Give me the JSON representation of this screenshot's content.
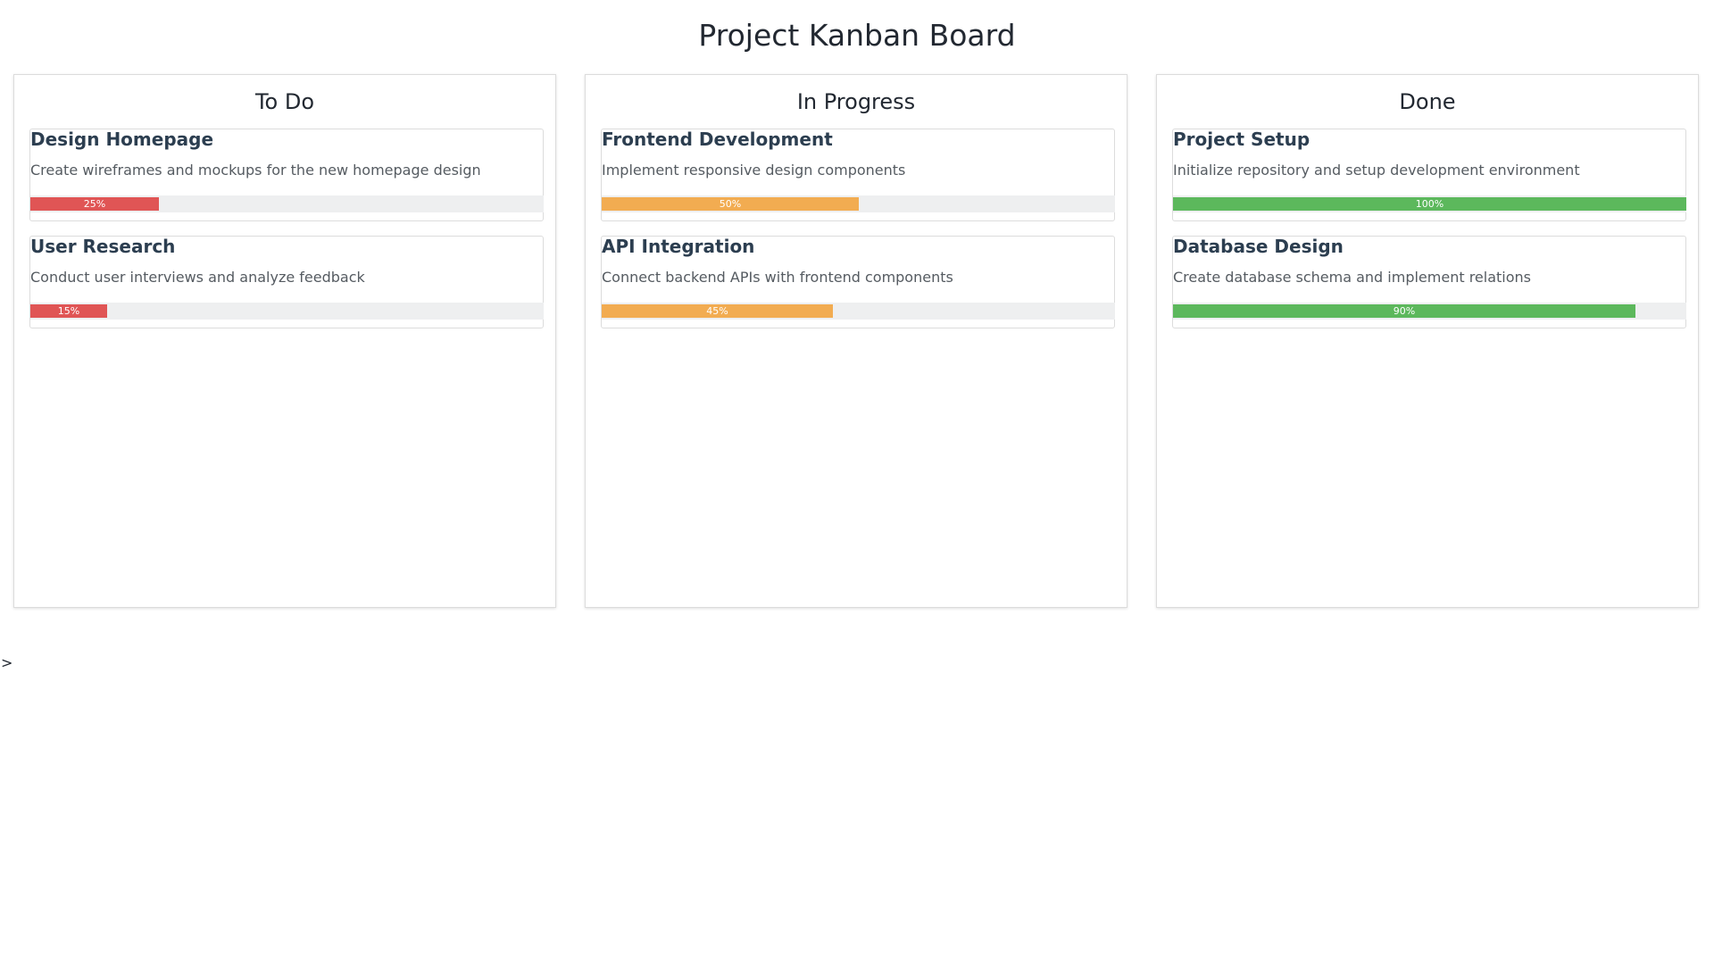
{
  "board": {
    "title": "Project Kanban Board"
  },
  "columns": [
    {
      "title": "To Do",
      "color": "#e05555",
      "cards": [
        {
          "title": "Design Homepage",
          "description": "Create wireframes and mockups for the new homepage design",
          "progress": 25,
          "progress_label": "25%"
        },
        {
          "title": "User Research",
          "description": "Conduct user interviews and analyze feedback",
          "progress": 15,
          "progress_label": "15%"
        }
      ]
    },
    {
      "title": "In Progress",
      "color": "#f2ac51",
      "cards": [
        {
          "title": "Frontend Development",
          "description": "Implement responsive design components",
          "progress": 50,
          "progress_label": "50%"
        },
        {
          "title": "API Integration",
          "description": "Connect backend APIs with frontend components",
          "progress": 45,
          "progress_label": "45%"
        }
      ]
    },
    {
      "title": "Done",
      "color": "#5cb85c",
      "cards": [
        {
          "title": "Project Setup",
          "description": "Initialize repository and setup development environment",
          "progress": 100,
          "progress_label": "100%"
        },
        {
          "title": "Database Design",
          "description": "Create database schema and implement relations",
          "progress": 90,
          "progress_label": "90%"
        }
      ]
    }
  ],
  "footer": {
    "prompt_text": ">"
  }
}
